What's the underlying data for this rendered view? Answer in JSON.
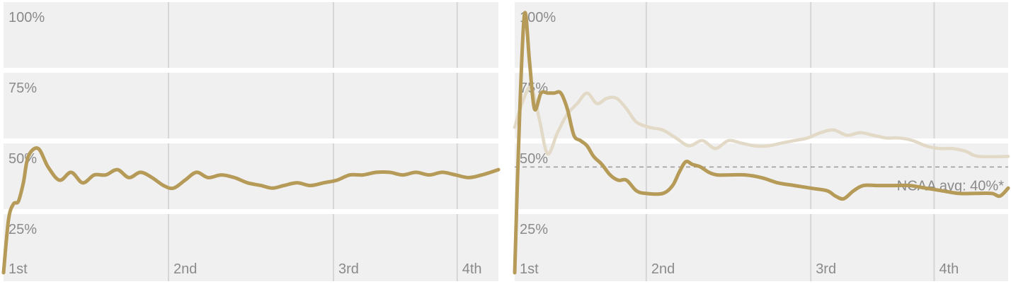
{
  "chart_data": [
    {
      "type": "line",
      "x_ticks": [
        {
          "label": "1st",
          "x": 0
        },
        {
          "label": "2nd",
          "x": 10
        },
        {
          "label": "3rd",
          "x": 20
        },
        {
          "label": "4th",
          "x": 27.5
        }
      ],
      "y_ticks": [
        {
          "label": "100%",
          "y": 100
        },
        {
          "label": "75%",
          "y": 75
        },
        {
          "label": "50%",
          "y": 50
        },
        {
          "label": "25%",
          "y": 25
        }
      ],
      "xlim": [
        0,
        30
      ],
      "ylim": [
        0,
        100
      ],
      "grid": true,
      "series": [
        {
          "style": "main",
          "color": "#b59a58",
          "points": [
            [
              0,
              0
            ],
            [
              0.3,
              20
            ],
            [
              0.6,
              26
            ],
            [
              0.9,
              27
            ],
            [
              1.2,
              34
            ],
            [
              1.5,
              44
            ],
            [
              2.1,
              47
            ],
            [
              2.7,
              40
            ],
            [
              3.4,
              35
            ],
            [
              4.1,
              38
            ],
            [
              4.8,
              34
            ],
            [
              5.5,
              37
            ],
            [
              6.2,
              37
            ],
            [
              6.9,
              39
            ],
            [
              7.6,
              36
            ],
            [
              8.3,
              38
            ],
            [
              9.0,
              36
            ],
            [
              9.7,
              33
            ],
            [
              10.3,
              32
            ],
            [
              11.0,
              35
            ],
            [
              11.7,
              38
            ],
            [
              12.4,
              36
            ],
            [
              13.2,
              37
            ],
            [
              14.0,
              36
            ],
            [
              14.8,
              34
            ],
            [
              15.6,
              33
            ],
            [
              16.3,
              32
            ],
            [
              17.0,
              33
            ],
            [
              17.8,
              34
            ],
            [
              18.6,
              33
            ],
            [
              19.4,
              34
            ],
            [
              20.2,
              35
            ],
            [
              21.0,
              37
            ],
            [
              21.8,
              37
            ],
            [
              22.6,
              38
            ],
            [
              23.4,
              38
            ],
            [
              24.2,
              37
            ],
            [
              25.0,
              38
            ],
            [
              25.8,
              37
            ],
            [
              26.6,
              38
            ],
            [
              27.4,
              37
            ],
            [
              28.2,
              36
            ],
            [
              29.0,
              37
            ],
            [
              30,
              39
            ]
          ]
        }
      ]
    },
    {
      "type": "line",
      "x_ticks": [
        {
          "label": "1st",
          "x": 0
        },
        {
          "label": "2nd",
          "x": 8
        },
        {
          "label": "3rd",
          "x": 18
        },
        {
          "label": "4th",
          "x": 25.5
        }
      ],
      "y_ticks": [
        {
          "label": "100%",
          "y": 100
        },
        {
          "label": "75%",
          "y": 75
        },
        {
          "label": "50%",
          "y": 50
        },
        {
          "label": "25%",
          "y": 25
        }
      ],
      "xlim": [
        0,
        30
      ],
      "ylim": [
        0,
        100
      ],
      "grid": true,
      "reference_line": {
        "y": 40,
        "label": "NCAA avg: 40%*"
      },
      "series": [
        {
          "style": "faded",
          "color": "#e2d9c6",
          "points": [
            [
              0,
              55
            ],
            [
              0.5,
              65
            ],
            [
              1.0,
              70
            ],
            [
              1.5,
              58
            ],
            [
              2.0,
              45
            ],
            [
              2.6,
              53
            ],
            [
              3.2,
              60
            ],
            [
              3.8,
              64
            ],
            [
              4.4,
              68
            ],
            [
              5.0,
              64
            ],
            [
              5.6,
              66
            ],
            [
              6.2,
              66
            ],
            [
              6.8,
              62
            ],
            [
              7.4,
              57
            ],
            [
              8.2,
              55
            ],
            [
              9.0,
              54
            ],
            [
              9.8,
              51
            ],
            [
              10.6,
              48
            ],
            [
              11.4,
              50
            ],
            [
              12.2,
              47
            ],
            [
              13.0,
              50
            ],
            [
              13.8,
              49
            ],
            [
              14.6,
              48
            ],
            [
              15.4,
              48
            ],
            [
              16.2,
              49
            ],
            [
              17.0,
              50
            ],
            [
              17.8,
              51
            ],
            [
              18.6,
              53
            ],
            [
              19.4,
              54
            ],
            [
              20.2,
              52
            ],
            [
              21.0,
              53
            ],
            [
              21.8,
              52
            ],
            [
              22.6,
              51
            ],
            [
              23.4,
              51
            ],
            [
              24.2,
              50
            ],
            [
              25.0,
              48
            ],
            [
              25.8,
              47
            ],
            [
              26.6,
              47
            ],
            [
              27.4,
              46
            ],
            [
              28.2,
              44
            ],
            [
              30,
              44
            ]
          ]
        },
        {
          "style": "main",
          "color": "#b59a58",
          "points": [
            [
              0,
              0
            ],
            [
              0.3,
              60
            ],
            [
              0.6,
              98
            ],
            [
              0.9,
              80
            ],
            [
              1.2,
              62
            ],
            [
              1.6,
              68
            ],
            [
              2.0,
              68
            ],
            [
              2.4,
              68
            ],
            [
              2.8,
              68
            ],
            [
              3.2,
              62
            ],
            [
              3.6,
              52
            ],
            [
              4.0,
              50
            ],
            [
              4.4,
              48
            ],
            [
              4.8,
              44
            ],
            [
              5.3,
              41
            ],
            [
              5.8,
              37
            ],
            [
              6.3,
              35
            ],
            [
              6.8,
              35
            ],
            [
              7.4,
              31
            ],
            [
              8.0,
              30
            ],
            [
              9.0,
              30
            ],
            [
              9.6,
              33
            ],
            [
              10.0,
              38
            ],
            [
              10.4,
              42
            ],
            [
              10.8,
              41
            ],
            [
              11.3,
              40
            ],
            [
              11.8,
              38
            ],
            [
              12.3,
              37
            ],
            [
              13.0,
              37
            ],
            [
              14.0,
              37
            ],
            [
              15.0,
              36
            ],
            [
              16.0,
              34
            ],
            [
              17.0,
              33
            ],
            [
              18.0,
              32
            ],
            [
              19.0,
              31
            ],
            [
              19.5,
              29
            ],
            [
              20.0,
              28
            ],
            [
              20.6,
              31
            ],
            [
              21.2,
              33
            ],
            [
              22.0,
              33
            ],
            [
              23.0,
              33
            ],
            [
              24.0,
              33
            ],
            [
              25.0,
              32
            ],
            [
              26.0,
              31
            ],
            [
              27.0,
              30
            ],
            [
              28.0,
              30
            ],
            [
              29.0,
              30
            ],
            [
              29.5,
              29
            ],
            [
              30,
              32
            ]
          ]
        }
      ]
    }
  ]
}
